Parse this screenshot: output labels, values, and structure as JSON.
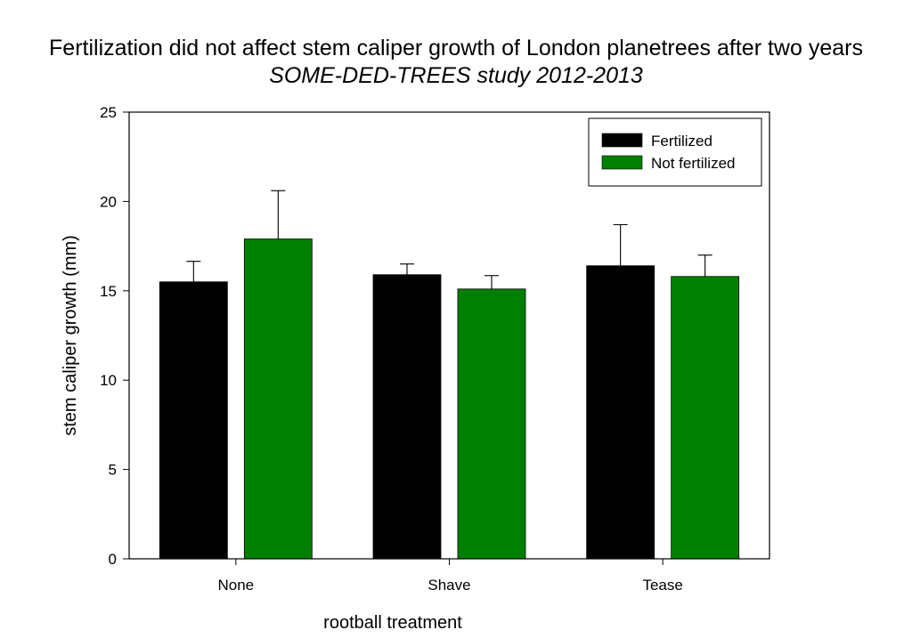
{
  "chart_data": {
    "type": "bar",
    "title": "Fertilization did not affect stem caliper growth of London planetrees after two years",
    "subtitle": "SOME-DED-TREES study 2012-2013",
    "xlabel": "rootball treatment",
    "ylabel": "stem caliper growth (mm)",
    "categories": [
      "None",
      "Shave",
      "Tease"
    ],
    "ylim": [
      0,
      25
    ],
    "yticks": [
      0,
      5,
      10,
      15,
      20,
      25
    ],
    "yticks_labels": [
      "0",
      "5",
      "10",
      "15",
      "20",
      "25"
    ],
    "grid": false,
    "legend_position": "top-right",
    "series": [
      {
        "name": "Fertilized",
        "color": "#000000",
        "values": [
          15.5,
          15.9,
          16.4
        ],
        "error": [
          1.15,
          0.6,
          2.3
        ]
      },
      {
        "name": "Not fertilized",
        "color": "#008000",
        "values": [
          17.9,
          15.1,
          15.8
        ],
        "error": [
          2.7,
          0.75,
          1.2
        ]
      }
    ]
  }
}
